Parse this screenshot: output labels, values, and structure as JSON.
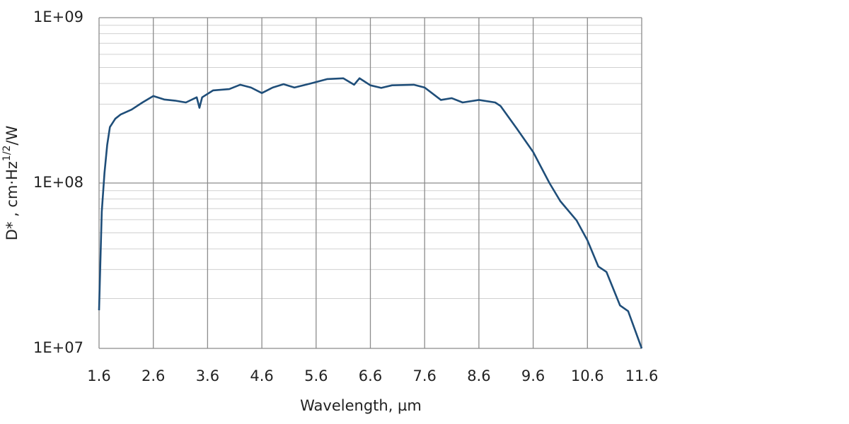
{
  "chart_data": {
    "type": "line",
    "xlabel": "Wavelength, µm",
    "ylabel": [
      "D* , cm·Hz",
      "1/2",
      "/W"
    ],
    "xlim": [
      1.6,
      11.6
    ],
    "xticks": [
      1.6,
      2.6,
      3.6,
      4.6,
      5.6,
      6.6,
      7.6,
      8.6,
      9.6,
      10.6,
      11.6
    ],
    "ylim": [
      10000000,
      1000000000
    ],
    "yticks": [
      {
        "value": 10000000,
        "label": "1E+07"
      },
      {
        "value": 100000000,
        "label": "1E+08"
      },
      {
        "value": 1000000000,
        "label": "1E+09"
      }
    ],
    "log_y": true,
    "grid": true,
    "minor_grid": true,
    "series": [
      {
        "color": "#1f4e79",
        "x": [
          1.6,
          1.65,
          1.7,
          1.75,
          1.8,
          1.9,
          2.0,
          2.2,
          2.4,
          2.6,
          2.8,
          3.0,
          3.2,
          3.4,
          3.45,
          3.5,
          3.7,
          4.0,
          4.2,
          4.4,
          4.6,
          4.8,
          5.0,
          5.2,
          5.5,
          5.8,
          6.1,
          6.3,
          6.4,
          6.6,
          6.8,
          7.0,
          7.4,
          7.6,
          7.9,
          8.1,
          8.3,
          8.6,
          8.9,
          9.0,
          9.3,
          9.6,
          9.9,
          10.1,
          10.4,
          10.6,
          10.8,
          10.95,
          11.2,
          11.35,
          11.6
        ],
        "values": [
          17000000,
          67000000,
          115000000,
          170000000,
          218000000,
          245000000,
          260000000,
          278000000,
          307000000,
          336000000,
          320000000,
          315000000,
          307000000,
          330000000,
          285000000,
          330000000,
          363000000,
          370000000,
          393000000,
          378000000,
          350000000,
          378000000,
          396000000,
          378000000,
          400000000,
          425000000,
          430000000,
          393000000,
          430000000,
          390000000,
          376000000,
          390000000,
          393000000,
          378000000,
          318000000,
          326000000,
          307000000,
          318000000,
          307000000,
          292000000,
          213000000,
          154000000,
          100000000,
          77700000,
          59400000,
          45000000,
          31300000,
          29000000,
          18200000,
          16800000,
          10000000
        ]
      }
    ]
  }
}
